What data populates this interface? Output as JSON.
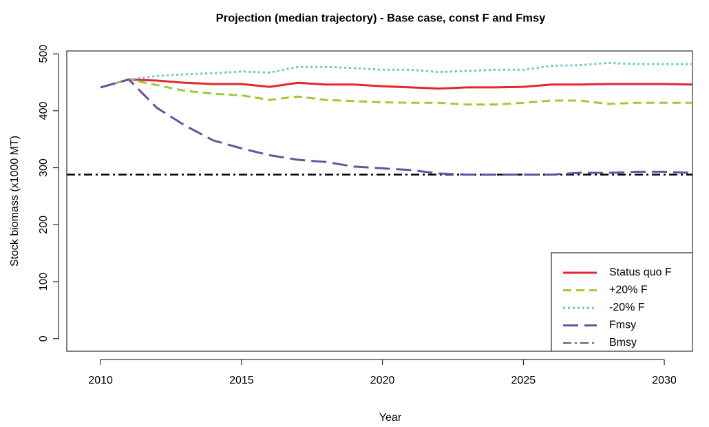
{
  "chart_data": {
    "type": "line",
    "title": "Projection (median trajectory) - Base case, const F and Fmsy",
    "x_label": "Year",
    "y_label": "Stock biomass (x1000 MT)",
    "x": [
      2010,
      2011,
      2012,
      2013,
      2014,
      2015,
      2016,
      2017,
      2018,
      2019,
      2020,
      2021,
      2022,
      2023,
      2024,
      2025,
      2026,
      2027,
      2028,
      2029,
      2030,
      2031
    ],
    "series": [
      {
        "name": "Status quo F",
        "color": "#e3262b",
        "dash": "solid",
        "values": [
          441,
          455,
          453,
          449,
          447,
          447,
          442,
          449,
          446,
          446,
          443,
          441,
          439,
          441,
          441,
          442,
          446,
          446,
          447,
          447,
          447,
          446
        ]
      },
      {
        "name": "+20% F",
        "color": "#9acd32",
        "dash": "dashed",
        "values": [
          441,
          455,
          445,
          435,
          430,
          427,
          419,
          425,
          419,
          417,
          415,
          414,
          414,
          411,
          411,
          414,
          418,
          418,
          412,
          414,
          414,
          414
        ]
      },
      {
        "name": "-20% F",
        "color": "#5bc8d3",
        "dash": "dotted",
        "values": [
          441,
          455,
          461,
          464,
          466,
          469,
          467,
          477,
          477,
          475,
          472,
          472,
          468,
          470,
          472,
          472,
          479,
          480,
          484,
          482,
          482,
          482
        ]
      },
      {
        "name": "Fmsy",
        "color": "#6a51a3",
        "dash": "longdash",
        "values": [
          441,
          455,
          405,
          374,
          348,
          334,
          322,
          314,
          310,
          302,
          299,
          296,
          290,
          288,
          288,
          288,
          288,
          291,
          291,
          293,
          293,
          291
        ]
      }
    ],
    "reference_line": {
      "name": "Bmsy",
      "value": 288,
      "color": "#000000",
      "dash": "dashdot"
    },
    "xlim": [
      2008.8,
      2031.0
    ],
    "ylim": [
      -22,
      505
    ],
    "xticks": [
      2010,
      2015,
      2020,
      2025,
      2030
    ],
    "yticks": [
      0,
      100,
      200,
      300,
      400,
      500
    ],
    "grid": false,
    "legend_position": "bottom-right"
  }
}
